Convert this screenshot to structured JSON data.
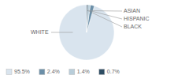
{
  "chart_data": {
    "type": "pie",
    "categories": [
      "WHITE",
      "ASIAN",
      "HISPANIC",
      "BLACK"
    ],
    "values": [
      95.5,
      2.4,
      1.4,
      0.7
    ],
    "value_labels": [
      "95.5%",
      "2.4%",
      "1.4%",
      "0.7%"
    ],
    "colors": [
      "#d9e4ee",
      "#6b8fa8",
      "#b8cdd9",
      "#2e4d63"
    ],
    "legend": "bottom"
  }
}
